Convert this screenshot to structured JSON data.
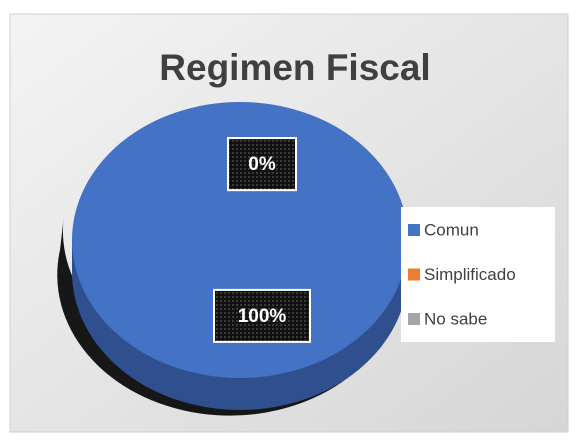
{
  "chart_data": {
    "type": "pie",
    "title": "Regimen Fiscal",
    "categories": [
      "Comun",
      "Simplificado",
      "No sabe"
    ],
    "values": [
      100,
      0,
      0
    ],
    "value_labels": [
      "100%",
      "0%",
      "0%"
    ],
    "colors": [
      "#4472c4",
      "#ed7d31",
      "#a5a5a5"
    ],
    "legend": "right"
  }
}
